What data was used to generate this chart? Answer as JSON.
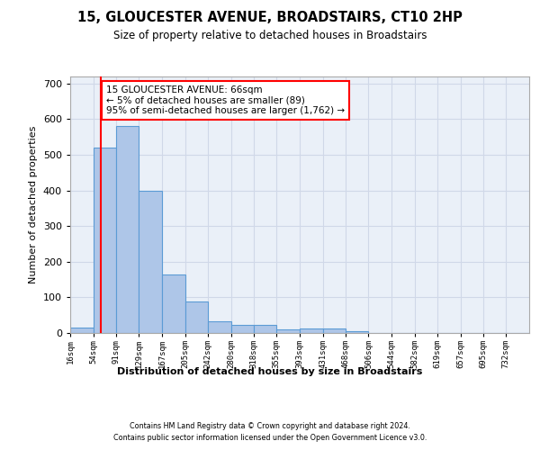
{
  "title": "15, GLOUCESTER AVENUE, BROADSTAIRS, CT10 2HP",
  "subtitle": "Size of property relative to detached houses in Broadstairs",
  "xlabel": "Distribution of detached houses by size in Broadstairs",
  "ylabel": "Number of detached properties",
  "bar_edges": [
    16,
    54,
    91,
    129,
    167,
    205,
    242,
    280,
    318,
    355,
    393,
    431,
    468,
    506,
    544,
    582,
    619,
    657,
    695,
    732,
    770
  ],
  "bar_heights": [
    15,
    520,
    580,
    400,
    165,
    88,
    33,
    22,
    22,
    10,
    12,
    12,
    5,
    0,
    0,
    0,
    0,
    0,
    0,
    0
  ],
  "bar_color": "#aec6e8",
  "bar_edge_color": "#5b9bd5",
  "grid_color": "#d0d8e8",
  "background_color": "#eaf0f8",
  "property_line_x": 66,
  "property_line_color": "red",
  "annotation_text": "15 GLOUCESTER AVENUE: 66sqm\n← 5% of detached houses are smaller (89)\n95% of semi-detached houses are larger (1,762) →",
  "annotation_box_color": "white",
  "annotation_box_edge_color": "red",
  "ylim": [
    0,
    720
  ],
  "yticks": [
    0,
    100,
    200,
    300,
    400,
    500,
    600,
    700
  ],
  "footer_line1": "Contains HM Land Registry data © Crown copyright and database right 2024.",
  "footer_line2": "Contains public sector information licensed under the Open Government Licence v3.0."
}
